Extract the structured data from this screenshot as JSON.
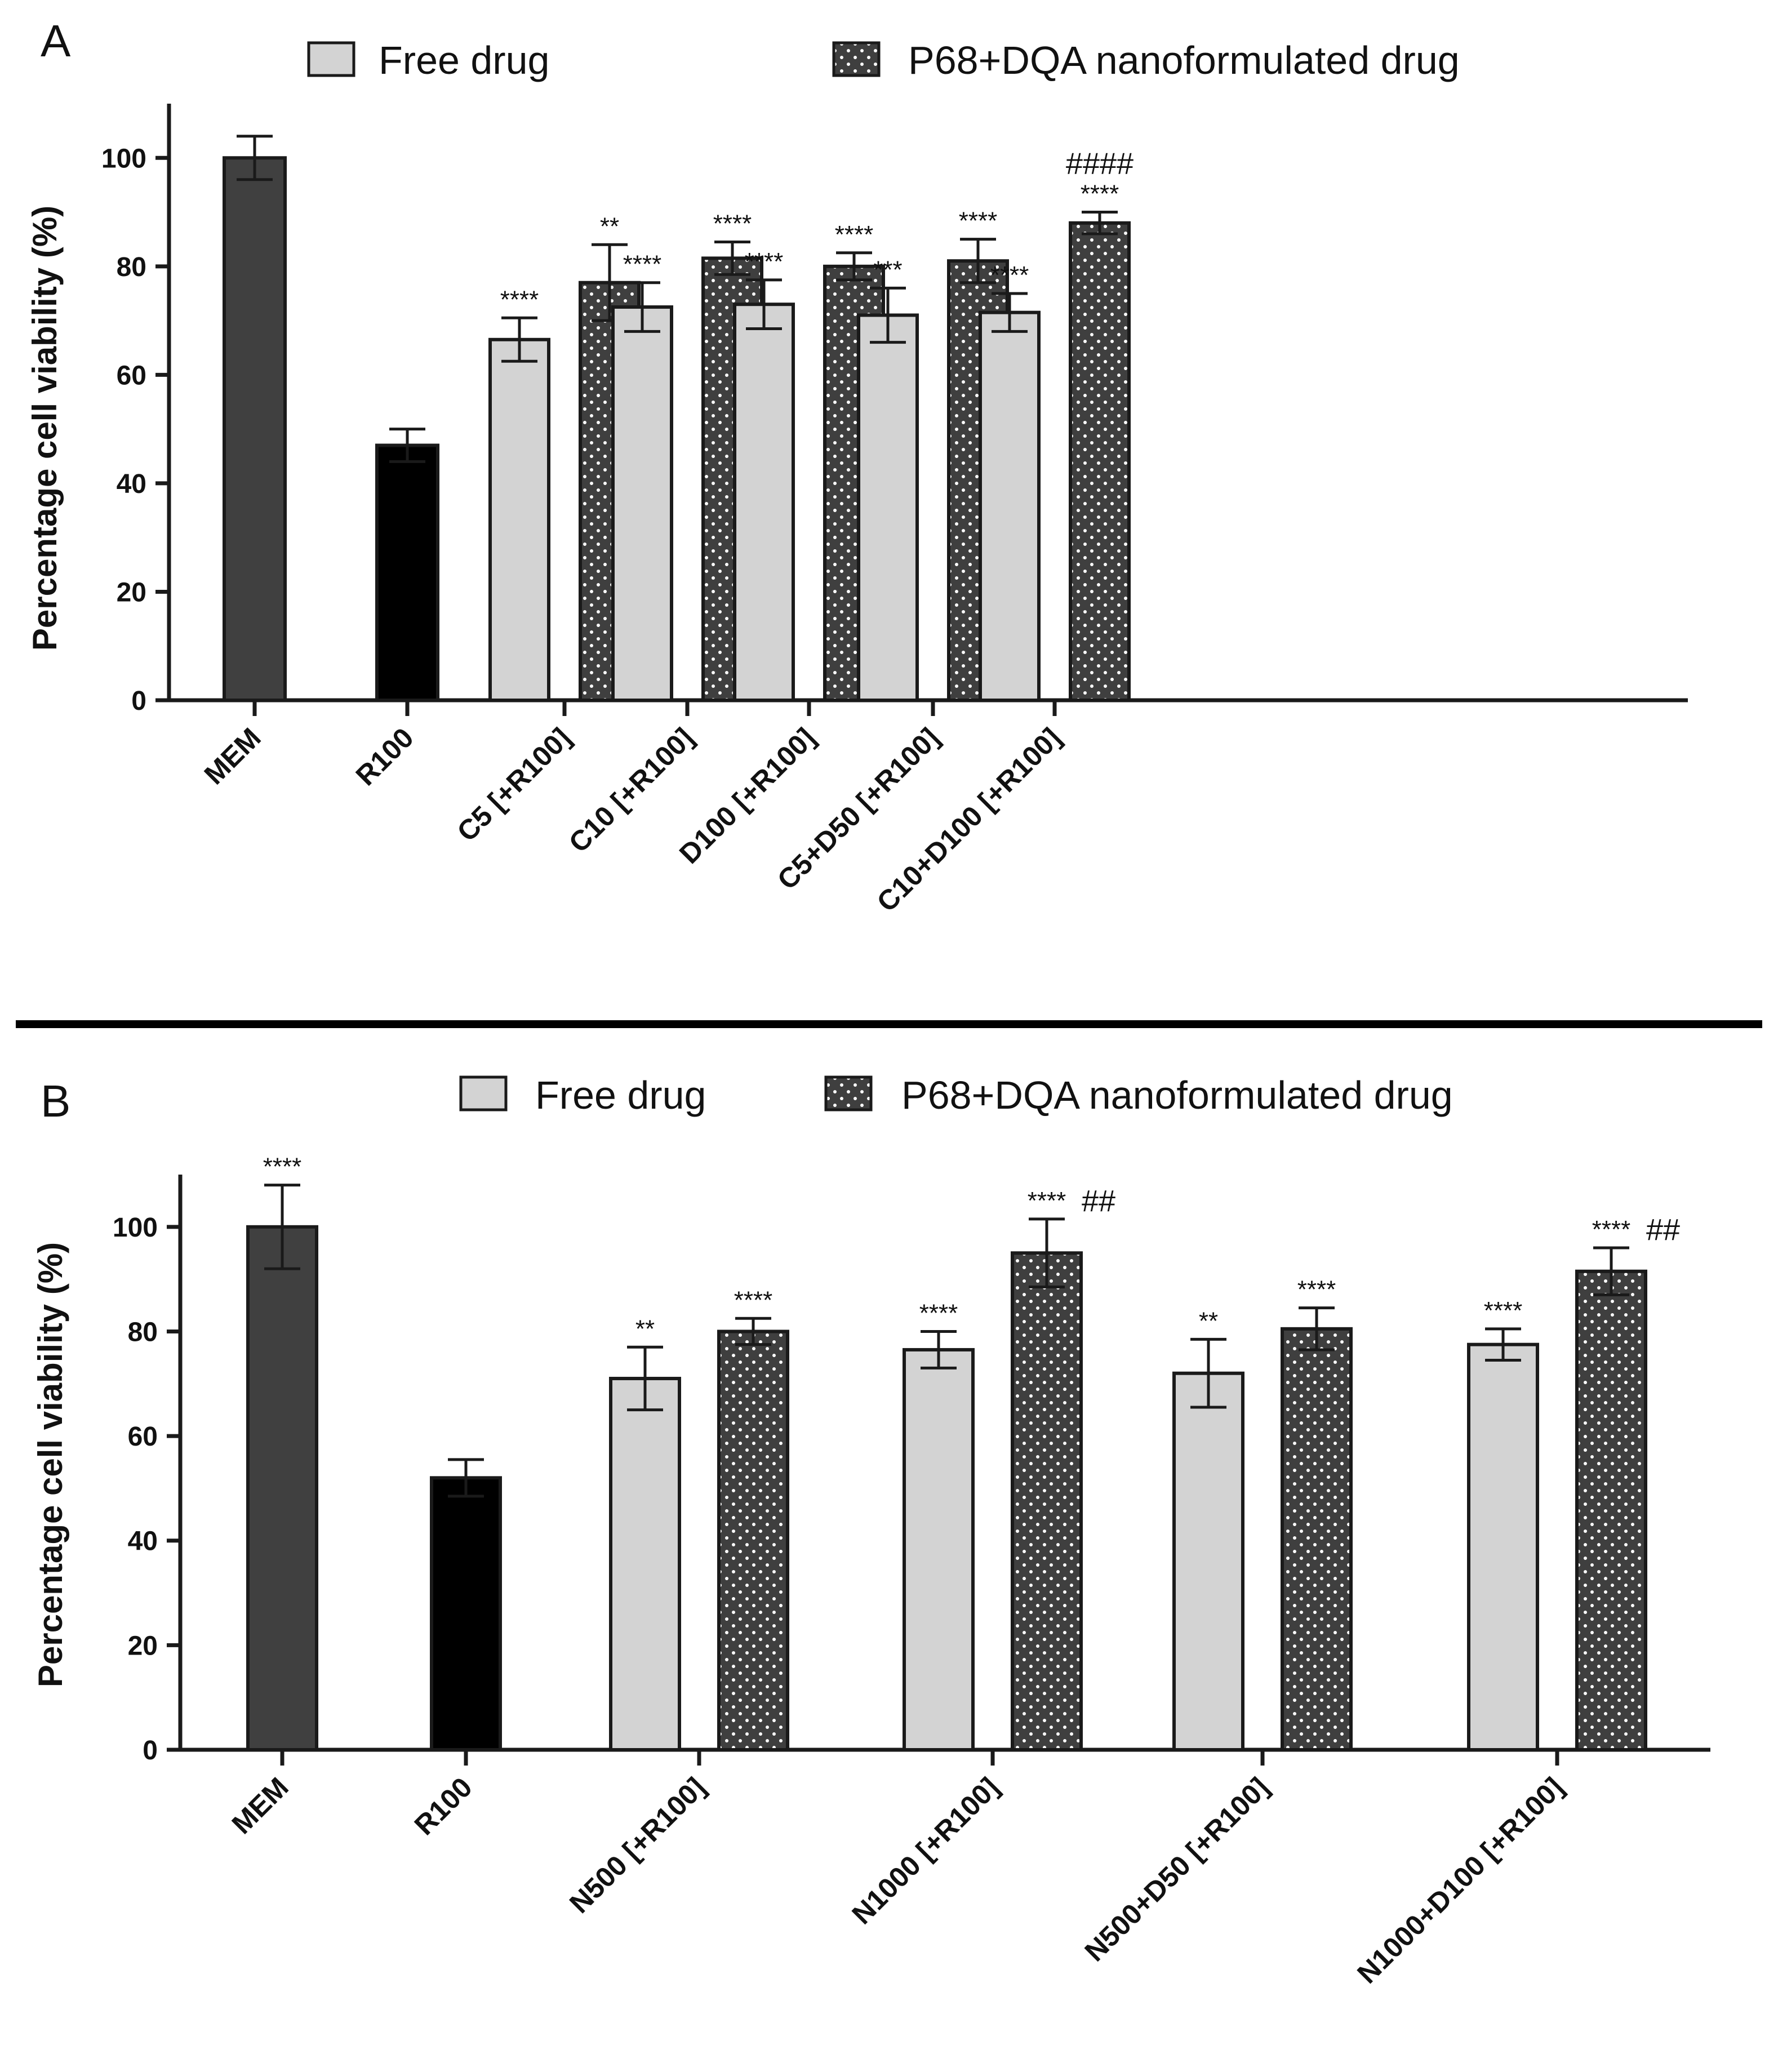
{
  "colors": {
    "free": "#d3d3d3",
    "nano_fill": "#3f3f3f",
    "mem": "#404040",
    "r100": "#000000",
    "stroke": "#1a1a1a"
  },
  "legend": {
    "free_label": "Free drug",
    "nano_label": "P68+DQA nanoformulated drug"
  },
  "chart_data": [
    {
      "panel": "A",
      "type": "bar",
      "ylabel": "Percentage cell viability (%)",
      "ylim": [
        0,
        110
      ],
      "yticks": [
        0,
        20,
        40,
        60,
        80,
        100
      ],
      "grid": false,
      "legend_position": "top",
      "series": [
        {
          "name": "Free drug",
          "pattern": "solid-light"
        },
        {
          "name": "P68+DQA nanoformulated drug",
          "pattern": "dotted-dark"
        }
      ],
      "groups": [
        {
          "label": "MEM",
          "bars": [
            {
              "kind": "control-mem",
              "value": 100,
              "error": 4,
              "annotation": ""
            }
          ]
        },
        {
          "label": "R100",
          "bars": [
            {
              "kind": "control-r100",
              "value": 47,
              "error": 3,
              "annotation": ""
            }
          ]
        },
        {
          "label": "C5 [+R100]",
          "bars": [
            {
              "kind": "free",
              "value": 66.5,
              "error": 4,
              "annotation": "****"
            },
            {
              "kind": "nano",
              "value": 77,
              "error": 7,
              "annotation": "**"
            }
          ]
        },
        {
          "label": "C10 [+R100]",
          "bars": [
            {
              "kind": "free",
              "value": 72.5,
              "error": 4.5,
              "annotation": "****"
            },
            {
              "kind": "nano",
              "value": 81.5,
              "error": 3,
              "annotation": "****"
            }
          ]
        },
        {
          "label": "D100 [+R100]",
          "bars": [
            {
              "kind": "free",
              "value": 73,
              "error": 4.5,
              "annotation": "****"
            },
            {
              "kind": "nano",
              "value": 80,
              "error": 2.5,
              "annotation": "****"
            }
          ]
        },
        {
          "label": "C5+D50 [+R100]",
          "bars": [
            {
              "kind": "free",
              "value": 71,
              "error": 5,
              "annotation": "***"
            },
            {
              "kind": "nano",
              "value": 81,
              "error": 4,
              "annotation": "****"
            }
          ]
        },
        {
          "label": "C10+D100 [+R100]",
          "bars": [
            {
              "kind": "free",
              "value": 71.5,
              "error": 3.5,
              "annotation": "****"
            },
            {
              "kind": "nano",
              "value": 88,
              "error": 2,
              "annotation": "****",
              "hash": "####"
            }
          ]
        }
      ]
    },
    {
      "panel": "B",
      "type": "bar",
      "ylabel": "Percentage cell viability (%)",
      "ylim": [
        0,
        110
      ],
      "yticks": [
        0,
        20,
        40,
        60,
        80,
        100
      ],
      "grid": false,
      "legend_position": "top",
      "series": [
        {
          "name": "Free drug",
          "pattern": "solid-light"
        },
        {
          "name": "P68+DQA nanoformulated drug",
          "pattern": "dotted-dark"
        }
      ],
      "groups": [
        {
          "label": "MEM",
          "bars": [
            {
              "kind": "control-mem",
              "value": 100,
              "error": 8,
              "annotation": "****"
            }
          ]
        },
        {
          "label": "R100",
          "bars": [
            {
              "kind": "control-r100",
              "value": 52,
              "error": 3.5,
              "annotation": ""
            }
          ]
        },
        {
          "label": "N500 [+R100]",
          "bars": [
            {
              "kind": "free",
              "value": 71,
              "error": 6,
              "annotation": "**"
            },
            {
              "kind": "nano",
              "value": 80,
              "error": 2.5,
              "annotation": "****"
            }
          ]
        },
        {
          "label": "N1000 [+R100]",
          "bars": [
            {
              "kind": "free",
              "value": 76.5,
              "error": 3.5,
              "annotation": "****"
            },
            {
              "kind": "nano",
              "value": 95,
              "error": 6.5,
              "annotation": "****",
              "hash": "##"
            }
          ]
        },
        {
          "label": "N500+D50 [+R100]",
          "bars": [
            {
              "kind": "free",
              "value": 72,
              "error": 6.5,
              "annotation": "**"
            },
            {
              "kind": "nano",
              "value": 80.5,
              "error": 4,
              "annotation": "****"
            }
          ]
        },
        {
          "label": "N1000+D100 [+R100]",
          "bars": [
            {
              "kind": "free",
              "value": 77.5,
              "error": 3,
              "annotation": "****"
            },
            {
              "kind": "nano",
              "value": 91.5,
              "error": 4.5,
              "annotation": "****",
              "hash": "##"
            }
          ]
        }
      ]
    }
  ]
}
